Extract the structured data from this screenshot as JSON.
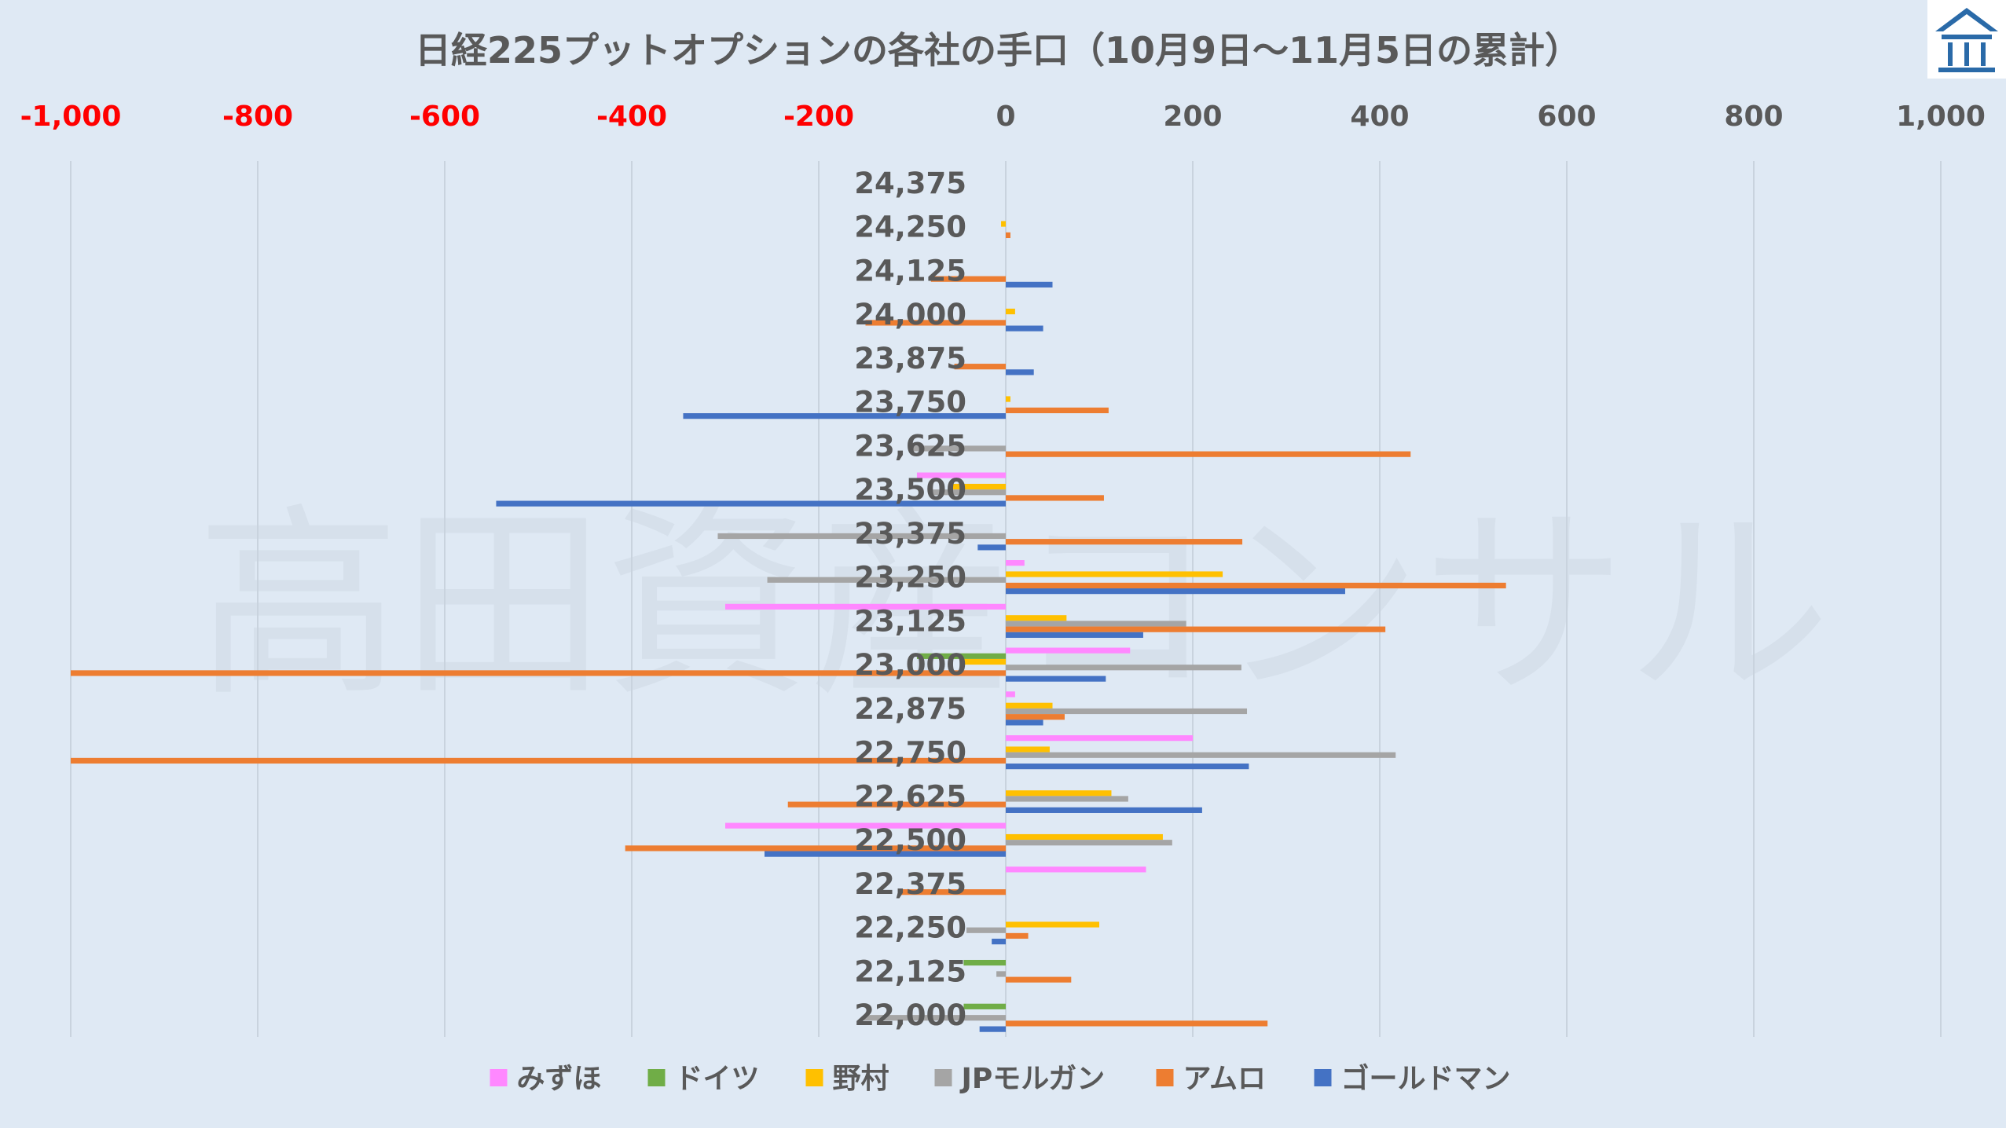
{
  "watermark": "高田資産コンサル",
  "chart_data": {
    "type": "bar",
    "orientation": "horizontal",
    "title": "日経225プットオプションの各社の手口（10月9日～11月5日の累計）",
    "xlim": [
      -1000,
      1000
    ],
    "xticks": [
      -1000,
      -800,
      -600,
      -400,
      -200,
      0,
      200,
      400,
      600,
      800,
      1000
    ],
    "xtick_labels": [
      "-1,000",
      "-800",
      "-600",
      "-400",
      "-200",
      "0",
      "200",
      "400",
      "600",
      "800",
      "1,000"
    ],
    "negative_tick_color": "#ff0000",
    "positive_tick_color": "#595959",
    "grid": "vertical",
    "legend_position": "bottom",
    "categories": [
      "24,375",
      "24,250",
      "24,125",
      "24,000",
      "23,875",
      "23,750",
      "23,625",
      "23,500",
      "23,375",
      "23,250",
      "23,125",
      "23,000",
      "22,875",
      "22,750",
      "22,625",
      "22,500",
      "22,375",
      "22,250",
      "22,125",
      "22,000"
    ],
    "series": [
      {
        "name": "みずほ",
        "color": "#ff88ff",
        "values": [
          0,
          0,
          0,
          0,
          0,
          0,
          0,
          -95,
          0,
          20,
          -300,
          133,
          10,
          200,
          0,
          -300,
          150,
          0,
          0,
          0
        ]
      },
      {
        "name": "ドイツ",
        "color": "#70ad47",
        "values": [
          0,
          0,
          0,
          0,
          0,
          0,
          0,
          0,
          0,
          0,
          0,
          -95,
          0,
          0,
          0,
          0,
          0,
          0,
          -45,
          -45
        ]
      },
      {
        "name": "野村",
        "color": "#ffc000",
        "values": [
          0,
          -5,
          0,
          10,
          0,
          5,
          0,
          -60,
          0,
          232,
          65,
          -45,
          50,
          47,
          113,
          168,
          0,
          100,
          0,
          0
        ]
      },
      {
        "name": "JPモルガン",
        "color": "#a5a5a5",
        "values": [
          0,
          0,
          0,
          0,
          0,
          0,
          -100,
          -80,
          -308,
          -255,
          193,
          252,
          258,
          417,
          131,
          178,
          0,
          -42,
          -10,
          -152
        ]
      },
      {
        "name": "アムロ",
        "color": "#ed7d31",
        "values": [
          0,
          5,
          -80,
          -150,
          -55,
          110,
          433,
          105,
          253,
          535,
          406,
          -1000,
          63,
          -1000,
          -233,
          -407,
          -115,
          24,
          70,
          280
        ]
      },
      {
        "name": "ゴールドマン",
        "color": "#4472c4",
        "values": [
          0,
          0,
          50,
          40,
          30,
          -345,
          0,
          -545,
          -30,
          363,
          147,
          107,
          40,
          260,
          210,
          -258,
          0,
          -15,
          0,
          -28
        ]
      }
    ]
  }
}
